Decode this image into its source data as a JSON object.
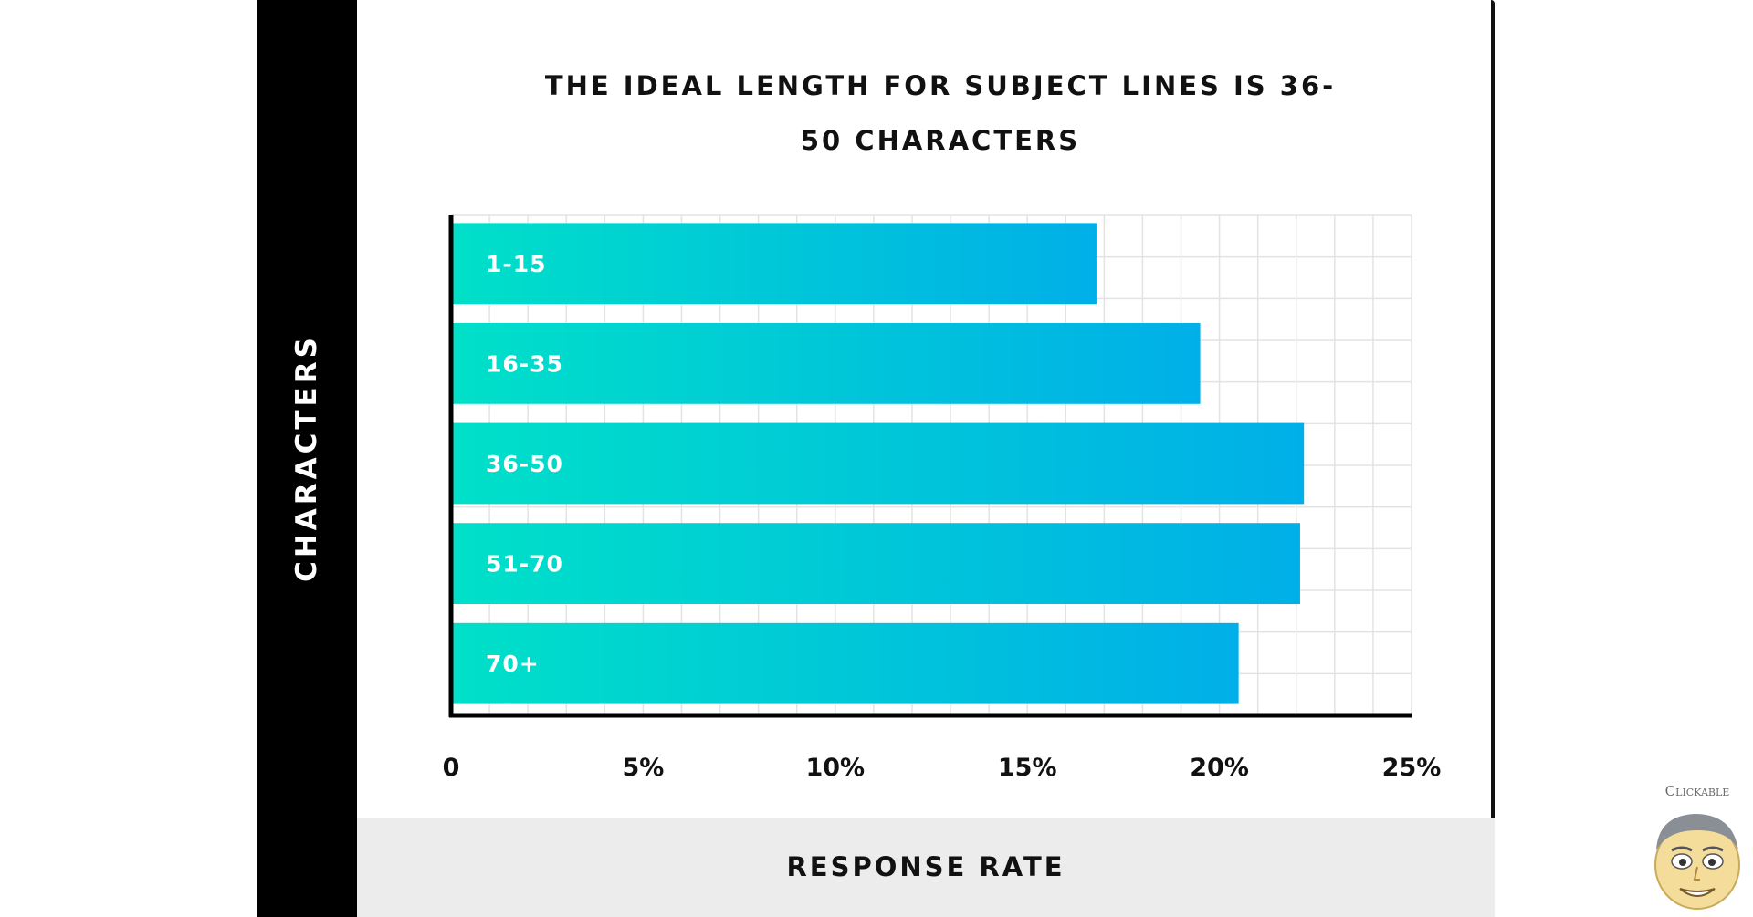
{
  "chart_data": {
    "type": "bar",
    "orientation": "horizontal",
    "title": "THE IDEAL LENGTH FOR SUBJECT LINES IS 36-50 CHARACTERS",
    "ylabel": "CHARACTERS",
    "xlabel": "RESPONSE RATE",
    "categories": [
      "1-15",
      "16-35",
      "36-50",
      "51-70",
      "70+"
    ],
    "values": [
      16.8,
      19.5,
      22.2,
      22.1,
      20.5
    ],
    "unit": "%",
    "xlim": [
      0,
      25
    ],
    "xticks": [
      {
        "value": 0,
        "label": "0"
      },
      {
        "value": 5,
        "label": "5%"
      },
      {
        "value": 10,
        "label": "10%"
      },
      {
        "value": 15,
        "label": "15%"
      },
      {
        "value": 20,
        "label": "20%"
      },
      {
        "value": 25,
        "label": "25%"
      }
    ],
    "grid": true,
    "bar_gradient": [
      "#00e0c8",
      "#00afe8"
    ],
    "category_labels_inside_bars": true
  },
  "watermark": {
    "text": "Clickable",
    "icon": "cartoon-face-icon"
  }
}
